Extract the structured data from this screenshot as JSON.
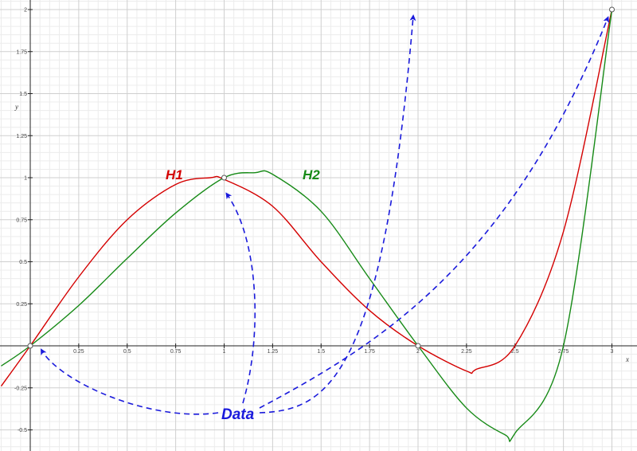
{
  "chart_data": {
    "type": "line",
    "title": "",
    "xlabel": "x",
    "ylabel": "y",
    "xlim": [
      -0.15,
      3.13
    ],
    "ylim": [
      -0.6,
      2.05
    ],
    "grid": true,
    "x_ticks": [
      {
        "v": 0.25,
        "label": "0.25"
      },
      {
        "v": 0.5,
        "label": "0.5"
      },
      {
        "v": 0.75,
        "label": "0.75"
      },
      {
        "v": 1,
        "label": "1"
      },
      {
        "v": 1.25,
        "label": "1.25"
      },
      {
        "v": 1.5,
        "label": "1.5"
      },
      {
        "v": 1.75,
        "label": "1.75"
      },
      {
        "v": 2,
        "label": "2"
      },
      {
        "v": 2.25,
        "label": "2.25"
      },
      {
        "v": 2.5,
        "label": "2.5"
      },
      {
        "v": 2.75,
        "label": "2.75"
      },
      {
        "v": 3,
        "label": "3"
      }
    ],
    "y_ticks": [
      {
        "v": -0.5,
        "label": "-0.5"
      },
      {
        "v": -0.25,
        "label": "-0.25"
      },
      {
        "v": 0.25,
        "label": "0.25"
      },
      {
        "v": 0.5,
        "label": "0.5"
      },
      {
        "v": 0.75,
        "label": "0.75"
      },
      {
        "v": 1,
        "label": "1"
      },
      {
        "v": 1.25,
        "label": "1.25"
      },
      {
        "v": 1.5,
        "label": "1.5"
      },
      {
        "v": 1.75,
        "label": "1.75"
      },
      {
        "v": 2,
        "label": "2"
      }
    ],
    "series": [
      {
        "name": "H1",
        "color": "#d40000",
        "x": [
          -0.15,
          0,
          0.25,
          0.5,
          0.75,
          0.93,
          1,
          1.25,
          1.5,
          1.75,
          2,
          2.25,
          2.3,
          2.5,
          2.75,
          3
        ],
        "y": [
          -0.24,
          0,
          0.41,
          0.75,
          0.96,
          1.0,
          0.99,
          0.83,
          0.5,
          0.21,
          0,
          -0.15,
          -0.14,
          0,
          0.68,
          2
        ]
      },
      {
        "name": "H2",
        "color": "#168a16",
        "x": [
          -0.15,
          0,
          0.25,
          0.5,
          0.75,
          1,
          1.16,
          1.25,
          1.5,
          1.75,
          2,
          2.25,
          2.45,
          2.5,
          2.75,
          3
        ],
        "y": [
          -0.12,
          0,
          0.24,
          0.52,
          0.79,
          1.0,
          1.03,
          1.02,
          0.8,
          0.4,
          0,
          -0.37,
          -0.53,
          -0.52,
          0,
          2
        ]
      }
    ],
    "data_points": {
      "label": "Data",
      "color": "#1a1adc",
      "points": [
        [
          0,
          0
        ],
        [
          1,
          1
        ],
        [
          2,
          0
        ],
        [
          3,
          2
        ]
      ]
    }
  }
}
